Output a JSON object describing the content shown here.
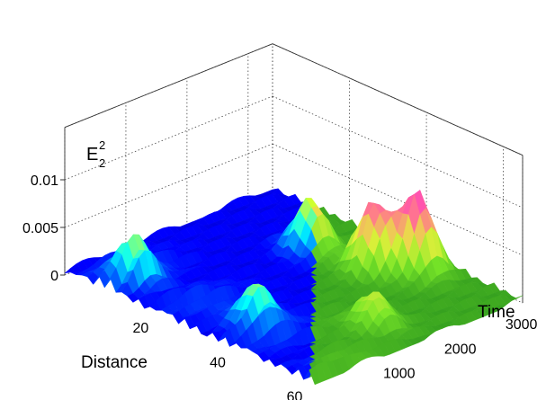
{
  "chart_data": {
    "type": "surface",
    "title": "",
    "zlabel": {
      "main": "E",
      "sup": "2",
      "sub": "2"
    },
    "xlabel": "Distance",
    "ylabel": "Time",
    "x_ticks": [
      "20",
      "40",
      "60"
    ],
    "y_ticks": [
      "1000",
      "2000",
      "3000"
    ],
    "z_ticks": [
      "0",
      "0.005",
      "0.01"
    ],
    "xlim": [
      0,
      65
    ],
    "ylim": [
      0,
      3400
    ],
    "zlim": [
      0,
      0.01
    ],
    "grid": true,
    "colormaps": {
      "left": "jet (blue dominant)",
      "right": "green-to-magenta"
    },
    "colors": {
      "left_low": "#0a1e9c",
      "right_low": "#2f9a1e",
      "right_high": "#ff38c8"
    },
    "peaks": [
      {
        "x": 44,
        "y": 3000,
        "z": 0.0085
      },
      {
        "x": 38,
        "y": 2650,
        "z": 0.0072
      },
      {
        "x": 24,
        "y": 2500,
        "z": 0.0055
      },
      {
        "x": 12,
        "y": 400,
        "z": 0.0042
      },
      {
        "x": 40,
        "y": 600,
        "z": 0.004
      },
      {
        "x": 55,
        "y": 1600,
        "z": 0.0035
      }
    ]
  }
}
